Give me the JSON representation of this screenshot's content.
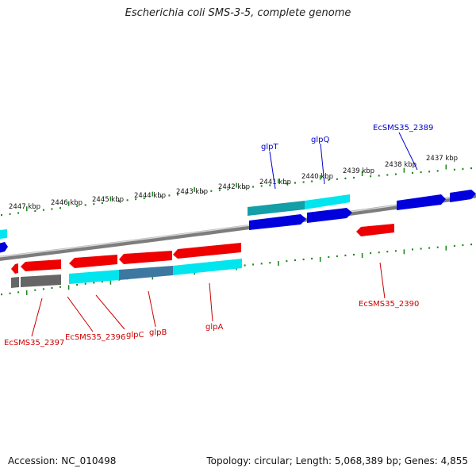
{
  "title": "Escherichia coli SMS-3-5, complete genome",
  "accession_label": "Accession: NC_010498",
  "topology_label": "Topology: circular; Length: 5,068,389 bp; Genes: 4,855",
  "colors": {
    "fwd_gene": "#0000dd",
    "rev_gene": "#ee0000",
    "cds_cyan": "#00e5ee",
    "cds_teal": "#149ea8",
    "cds_gray": "#666666",
    "tick": "#1c8a1c",
    "backbone": "#888888",
    "fwd_label": "#0000cc",
    "rev_label": "#cc0000"
  },
  "scale_labels": [
    "2447 kbp",
    "2446 kbp",
    "2445 kbp",
    "2444 kbp",
    "2443 kbp",
    "2442 kbp",
    "2441 kbp",
    "2440 kbp",
    "2439 kbp",
    "2438 kbp",
    "2437 kbp"
  ],
  "gene_labels_top": [
    "glpT",
    "glpQ",
    "EcSMS35_2389"
  ],
  "gene_labels_bottom": [
    "EcSMS35_2397",
    "EcSMS35_2396",
    "glpC",
    "glpB",
    "glpA",
    "EcSMS35_2390"
  ]
}
